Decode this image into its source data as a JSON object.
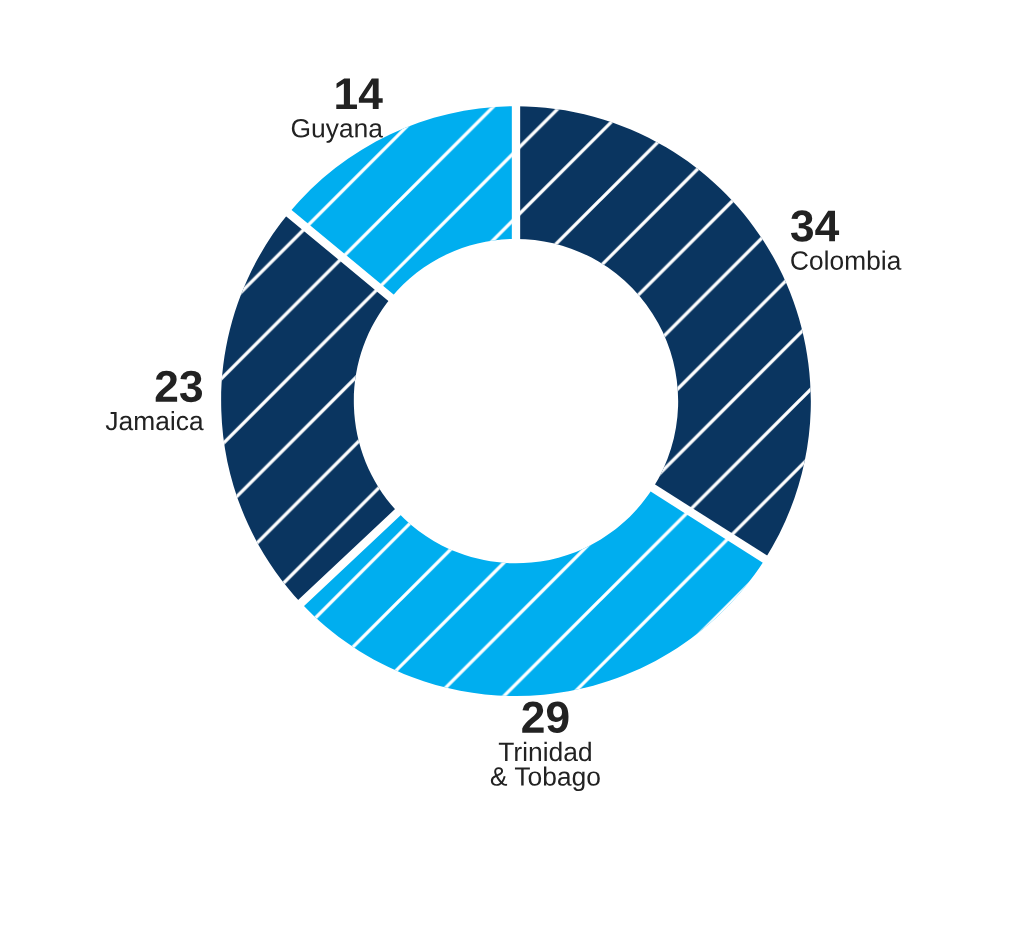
{
  "chart_data": {
    "type": "donut",
    "categories": [
      "Colombia",
      "Trinidad\n& Tobago",
      "Jamaica",
      "Guyana"
    ],
    "values": [
      34,
      29,
      23,
      14
    ],
    "colors": [
      "#0a3560",
      "#00aeef",
      "#0a3560",
      "#00aeef"
    ],
    "data_labels": true
  }
}
